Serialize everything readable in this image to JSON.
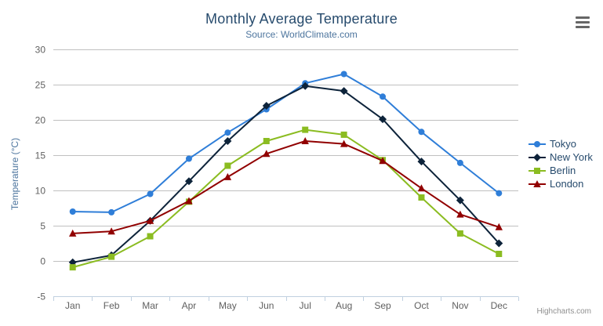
{
  "header": {
    "title": "Monthly Average Temperature",
    "subtitle": "Source: WorldClimate.com"
  },
  "export_menu": {
    "icon": "hamburger-menu-icon"
  },
  "credits": {
    "label": "Highcharts.com"
  },
  "colors": {
    "title": "#274b6d",
    "subtitle": "#4d759e",
    "axis_title": "#4d759e",
    "tick_label": "#606060",
    "gridline": "#c0c0c0",
    "axis_line": "#c0d0e0",
    "legend_text": "#274b6d",
    "credits_text": "#909090",
    "menu_icon": "#666666",
    "background": "#ffffff"
  },
  "chart_data": {
    "type": "line",
    "title": "Monthly Average Temperature",
    "subtitle": "Source: WorldClimate.com",
    "categories": [
      "Jan",
      "Feb",
      "Mar",
      "Apr",
      "May",
      "Jun",
      "Jul",
      "Aug",
      "Sep",
      "Oct",
      "Nov",
      "Dec"
    ],
    "series": [
      {
        "name": "Tokyo",
        "color": "#2f7ed8",
        "marker": "circle",
        "values": [
          7.0,
          6.9,
          9.5,
          14.5,
          18.2,
          21.5,
          25.2,
          26.5,
          23.3,
          18.3,
          13.9,
          9.6
        ]
      },
      {
        "name": "New York",
        "color": "#0d233a",
        "marker": "diamond",
        "values": [
          -0.2,
          0.8,
          5.7,
          11.3,
          17.0,
          22.0,
          24.8,
          24.1,
          20.1,
          14.1,
          8.6,
          2.5
        ]
      },
      {
        "name": "Berlin",
        "color": "#8bbc21",
        "marker": "square",
        "values": [
          -0.9,
          0.6,
          3.5,
          8.4,
          13.5,
          17.0,
          18.6,
          17.9,
          14.3,
          9.0,
          3.9,
          1.0
        ]
      },
      {
        "name": "London",
        "color": "#910000",
        "marker": "triangle",
        "values": [
          3.9,
          4.2,
          5.7,
          8.5,
          11.9,
          15.2,
          17.0,
          16.6,
          14.2,
          10.3,
          6.6,
          4.8
        ]
      }
    ],
    "xlabel": "",
    "ylabel": "Temperature (°C)",
    "ylim": [
      -5,
      30
    ],
    "ytick_step": 5,
    "grid": true,
    "legend_position": "right"
  }
}
